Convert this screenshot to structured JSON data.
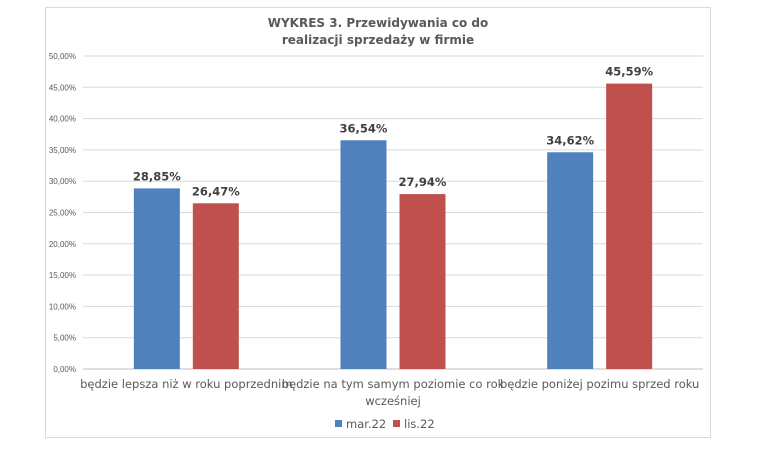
{
  "chart_data": {
    "type": "bar",
    "title_lines": [
      "WYKRES 3. Przewidywania co do",
      "realizacji sprzedaży w firmie"
    ],
    "categories": [
      [
        "będzie lepsza niż w roku poprzednim"
      ],
      [
        "będzie na tym samym poziomie co rok",
        "wcześniej"
      ],
      [
        "będzie poniżej pozimu sprzed roku"
      ]
    ],
    "series": [
      {
        "name": "mar.22",
        "color": "#4f81bd",
        "values": [
          28.85,
          36.54,
          34.62
        ],
        "labels": [
          "28,85%",
          "36,54%",
          "34,62%"
        ]
      },
      {
        "name": "lis.22",
        "color": "#c0504d",
        "values": [
          26.47,
          27.94,
          45.59
        ],
        "labels": [
          "26,47%",
          "27,94%",
          "45,59%"
        ]
      }
    ],
    "ylim": [
      0,
      50
    ],
    "yticks": [
      0,
      5,
      10,
      15,
      20,
      25,
      30,
      35,
      40,
      45,
      50
    ],
    "ytick_labels": [
      "0,00%",
      "5,00%",
      "10,00%",
      "15,00%",
      "20,00%",
      "25,00%",
      "30,00%",
      "35,00%",
      "40,00%",
      "45,00%",
      "50,00%"
    ],
    "grid": true,
    "legend": "bottom"
  }
}
